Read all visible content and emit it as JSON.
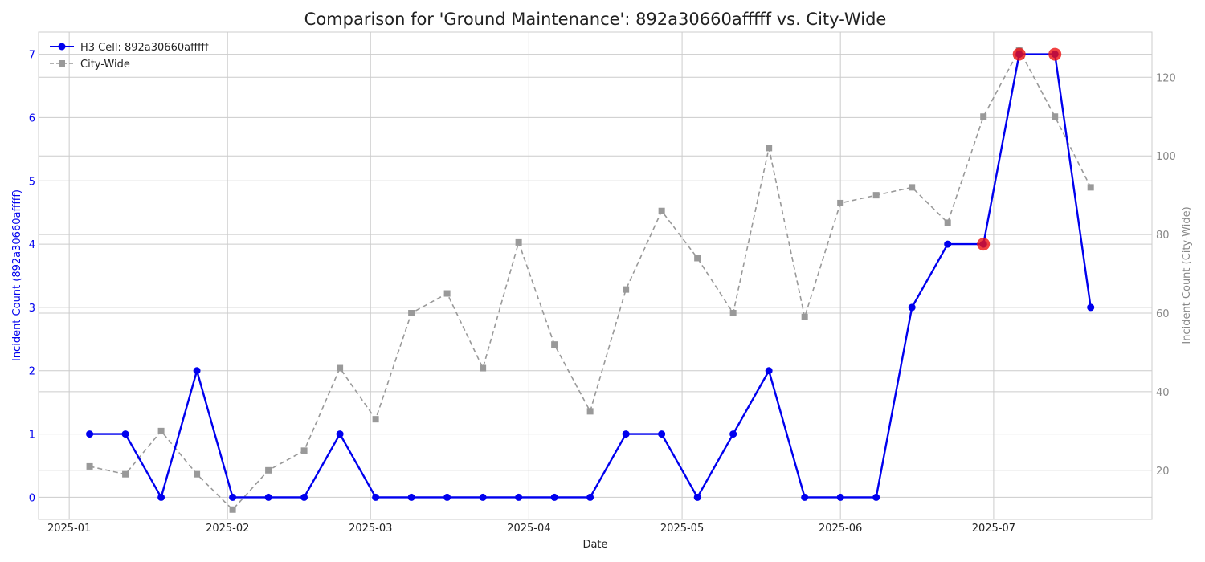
{
  "chart_data": {
    "type": "line",
    "title": "Comparison for 'Ground Maintenance': 892a30660afffff vs. City-Wide",
    "xlabel": "Date",
    "ylabel_left": "Incident Count (892a30660afffff)",
    "ylabel_right": "Incident Count (City-Wide)",
    "x_ticks": [
      "2025-01",
      "2025-02",
      "2025-03",
      "2025-04",
      "2025-05",
      "2025-06",
      "2025-07"
    ],
    "y_left_ticks": [
      0,
      1,
      2,
      3,
      4,
      5,
      6,
      7
    ],
    "y_right_ticks": [
      20,
      40,
      60,
      80,
      100,
      120
    ],
    "x_range": [
      "2024-12-26",
      "2025-08-01"
    ],
    "y_left_range": [
      -0.35,
      7.35
    ],
    "y_right_range": [
      7.5,
      131.5
    ],
    "grid": true,
    "legend_position": "top-left",
    "x": [
      "2025-01-05",
      "2025-01-12",
      "2025-01-19",
      "2025-01-26",
      "2025-02-02",
      "2025-02-09",
      "2025-02-16",
      "2025-02-23",
      "2025-03-02",
      "2025-03-09",
      "2025-03-16",
      "2025-03-23",
      "2025-03-30",
      "2025-04-06",
      "2025-04-13",
      "2025-04-20",
      "2025-04-27",
      "2025-05-04",
      "2025-05-11",
      "2025-05-18",
      "2025-05-25",
      "2025-06-01",
      "2025-06-08",
      "2025-06-15",
      "2025-06-22",
      "2025-06-29",
      "2025-07-06",
      "2025-07-13",
      "2025-07-20"
    ],
    "series": [
      {
        "name": "H3 Cell: 892a30660afffff",
        "axis": "left",
        "color": "#0000ee",
        "style": "solid",
        "marker": "circle",
        "values": [
          1,
          1,
          0,
          2,
          0,
          0,
          0,
          1,
          0,
          0,
          0,
          0,
          0,
          0,
          0,
          1,
          1,
          0,
          1,
          2,
          0,
          0,
          0,
          3,
          4,
          4,
          7,
          7,
          3
        ]
      },
      {
        "name": "City-Wide",
        "axis": "right",
        "color": "#999999",
        "style": "dashed",
        "marker": "square",
        "values": [
          21,
          19,
          30,
          19,
          10,
          20,
          25,
          46,
          33,
          60,
          65,
          46,
          78,
          52,
          35,
          66,
          86,
          74,
          60,
          102,
          59,
          88,
          90,
          92,
          83,
          110,
          127,
          110,
          92
        ]
      }
    ],
    "highlighted_points": [
      "2025-06-29",
      "2025-07-06",
      "2025-07-13"
    ],
    "highlight_color": "#ee1111"
  }
}
